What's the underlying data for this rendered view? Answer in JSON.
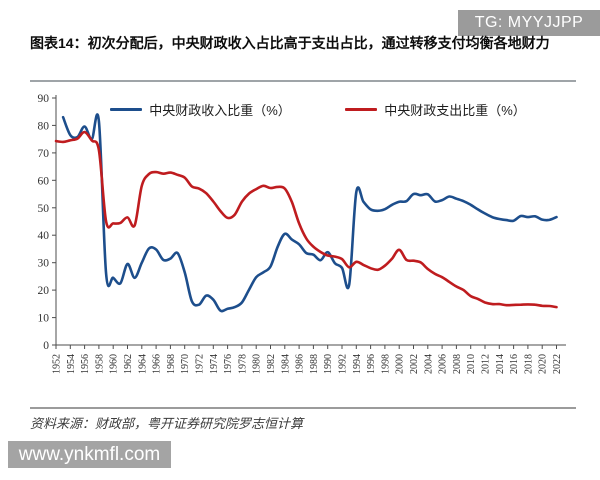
{
  "badge": {
    "text": "TG: MYYJJPP"
  },
  "title": "图表14：初次分配后，中央财政收入占比高于支出占比，通过转移支付均衡各地财力",
  "source_note": "资料来源：财政部，粤开证券研究院罗志恒计算",
  "watermark": "www.ynkmfl.com",
  "chart_data": {
    "type": "line",
    "x_start": 1952,
    "x_end": 2022,
    "xticks": [
      1952,
      1954,
      1956,
      1958,
      1960,
      1962,
      1964,
      1966,
      1968,
      1970,
      1972,
      1974,
      1976,
      1978,
      1980,
      1982,
      1984,
      1986,
      1988,
      1990,
      1992,
      1994,
      1996,
      1998,
      2000,
      2002,
      2004,
      2006,
      2008,
      2010,
      2012,
      2014,
      2016,
      2018,
      2020,
      2022
    ],
    "yticks": [
      0,
      10,
      20,
      30,
      40,
      50,
      60,
      70,
      80,
      90
    ],
    "ylim": [
      0,
      90
    ],
    "grid": false,
    "legend_position": "top",
    "series": [
      {
        "name": "中央财政收入比重（%）",
        "color": "#1d4e8c",
        "values": [
          null,
          83,
          76.5,
          75.8,
          79.6,
          75,
          81.5,
          26,
          24.5,
          22.5,
          29.5,
          24.5,
          30,
          35.2,
          34.8,
          31,
          31.5,
          33.5,
          26.5,
          16,
          14.7,
          18,
          16.5,
          12.5,
          13.2,
          13.8,
          15.5,
          20.2,
          24.7,
          26.5,
          28.6,
          35.8,
          40.5,
          38.4,
          36.7,
          33.5,
          32.9,
          30.9,
          33.8,
          29.8,
          28.1,
          22,
          55.7,
          52.2,
          49.4,
          48.9,
          49.5,
          51.1,
          52.2,
          52.4,
          55,
          54.6,
          54.9,
          52.3,
          52.8,
          54.1,
          53.3,
          52.4,
          51.1,
          49.4,
          47.9,
          46.6,
          45.9,
          45.5,
          45.3,
          47,
          46.6,
          46.9,
          45.7,
          45.6,
          46.6
        ]
      },
      {
        "name": "中央财政支出比重（%）",
        "color": "#bf1c1f",
        "values": [
          74.3,
          74,
          74.6,
          75.2,
          77.6,
          74.5,
          71,
          45,
          44.3,
          44.5,
          46.5,
          43.6,
          58,
          62.3,
          63,
          62.4,
          62.8,
          62,
          61,
          57.8,
          57,
          55.3,
          52.3,
          48.8,
          46.3,
          47.5,
          52.2,
          55.2,
          56.8,
          58,
          57.2,
          57.6,
          57,
          52,
          44.3,
          38.8,
          35.8,
          33.9,
          32.6,
          32.2,
          31.3,
          28.3,
          30.3,
          29.2,
          28,
          27.4,
          28.9,
          31.5,
          34.7,
          31,
          30.7,
          30.1,
          27.7,
          25.9,
          24.7,
          23,
          21.3,
          20,
          17.8,
          16.8,
          15.5,
          14.9,
          14.9,
          14.5,
          14.6,
          14.7,
          14.8,
          14.7,
          14.3,
          14.2,
          13.8
        ]
      }
    ]
  }
}
